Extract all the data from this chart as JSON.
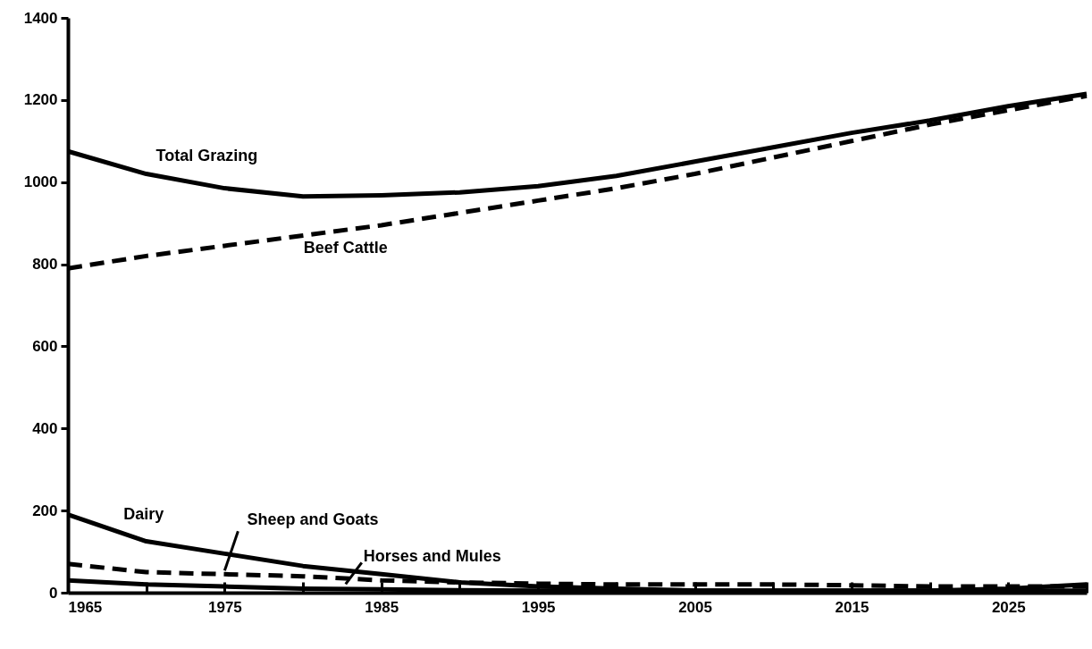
{
  "chart_data": {
    "type": "line",
    "x": [
      1965,
      1970,
      1975,
      1980,
      1985,
      1990,
      1995,
      2000,
      2005,
      2010,
      2015,
      2020,
      2025,
      2030
    ],
    "series": [
      {
        "name": "Total Grazing",
        "color": "#000000",
        "line_style": "solid",
        "values": [
          1075,
          1020,
          985,
          965,
          968,
          975,
          990,
          1015,
          1050,
          1085,
          1120,
          1150,
          1185,
          1215
        ]
      },
      {
        "name": "Beef Cattle",
        "color": "#000000",
        "line_style": "dashed",
        "values": [
          790,
          820,
          845,
          870,
          895,
          925,
          955,
          985,
          1020,
          1060,
          1100,
          1140,
          1175,
          1210
        ]
      },
      {
        "name": "Dairy",
        "color": "#000000",
        "line_style": "solid",
        "values": [
          190,
          125,
          95,
          65,
          45,
          25,
          15,
          10,
          5,
          5,
          5,
          5,
          10,
          20
        ]
      },
      {
        "name": "Sheep and Goats",
        "color": "#000000",
        "line_style": "dashed",
        "values": [
          70,
          50,
          45,
          40,
          30,
          25,
          22,
          20,
          20,
          20,
          18,
          15,
          15,
          15
        ]
      },
      {
        "name": "Horses and Mules",
        "color": "#000000",
        "line_style": "solid",
        "values": [
          30,
          20,
          15,
          10,
          8,
          6,
          5,
          5,
          5,
          5,
          5,
          5,
          5,
          5
        ]
      }
    ],
    "xlim": [
      1965,
      2030
    ],
    "xticks": [
      1965,
      {
        "value": 1970,
        "label": null
      },
      1975,
      {
        "value": 1980,
        "label": null
      },
      1985,
      {
        "value": 1990,
        "label": null
      },
      1995,
      {
        "value": 2000,
        "label": null
      },
      2005,
      {
        "value": 2010,
        "label": null
      },
      2015,
      {
        "value": 2020,
        "label": null
      },
      2025,
      {
        "value": 2030,
        "label": null
      }
    ],
    "ylim": [
      0,
      1400
    ],
    "yticks": [
      0,
      200,
      400,
      600,
      800,
      1000,
      1200,
      1400
    ],
    "grid": false
  }
}
